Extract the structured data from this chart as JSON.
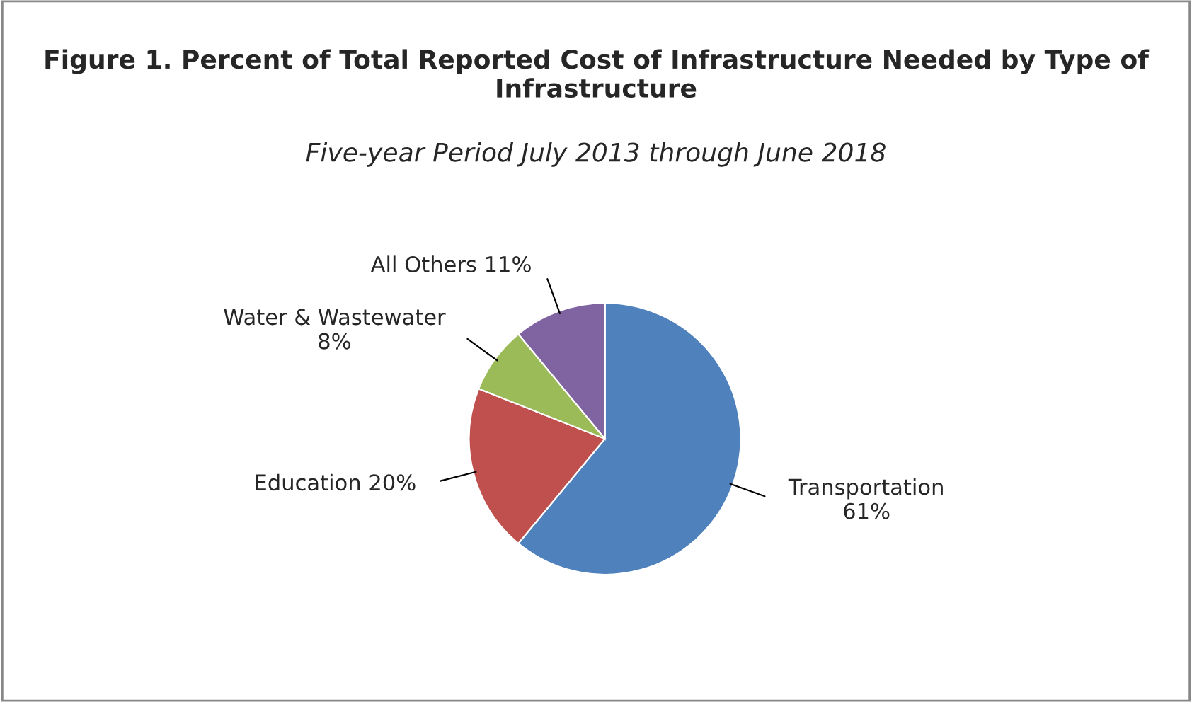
{
  "chart_data": {
    "type": "pie",
    "title": "Figure 1. Percent of Total Reported Cost of Infrastructure Needed by Type of Infrastructure",
    "subtitle": "Five-year Period July 2013 through June 2018",
    "categories": [
      "Transportation",
      "Education",
      "Water & Wastewater",
      "All Others"
    ],
    "values": [
      61,
      20,
      8,
      11
    ],
    "value_labels": [
      "61%",
      "20%",
      "8%",
      "11%"
    ],
    "colors": [
      "#4f81bd",
      "#c0504d",
      "#9bbb59",
      "#8064a2"
    ],
    "legend": false
  }
}
